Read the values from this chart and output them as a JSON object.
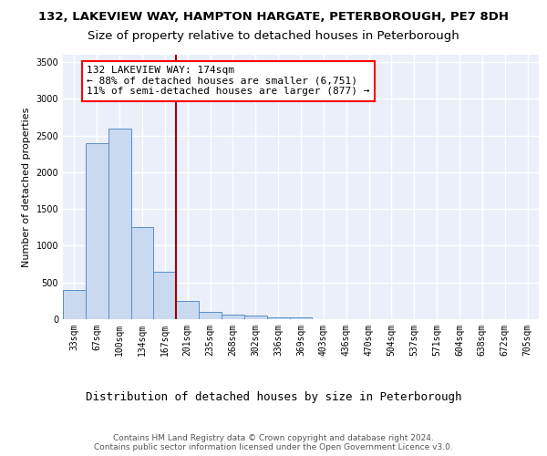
{
  "title1": "132, LAKEVIEW WAY, HAMPTON HARGATE, PETERBOROUGH, PE7 8DH",
  "title2": "Size of property relative to detached houses in Peterborough",
  "xlabel": "Distribution of detached houses by size in Peterborough",
  "ylabel": "Number of detached properties",
  "categories": [
    "33sqm",
    "67sqm",
    "100sqm",
    "134sqm",
    "167sqm",
    "201sqm",
    "235sqm",
    "268sqm",
    "302sqm",
    "336sqm",
    "369sqm",
    "403sqm",
    "436sqm",
    "470sqm",
    "504sqm",
    "537sqm",
    "571sqm",
    "604sqm",
    "638sqm",
    "672sqm",
    "705sqm"
  ],
  "values": [
    400,
    2400,
    2600,
    1250,
    650,
    250,
    100,
    60,
    55,
    30,
    30,
    5,
    5,
    5,
    5,
    5,
    5,
    5,
    0,
    0,
    0
  ],
  "bar_color": "#c9d9f0",
  "bar_edge_color": "#5a8fc4",
  "bg_color": "#eaeff9",
  "grid_color": "#ffffff",
  "vline_x": 4.5,
  "vline_color": "#a00000",
  "annotation_text": "132 LAKEVIEW WAY: 174sqm\n← 88% of detached houses are smaller (6,751)\n11% of semi-detached houses are larger (877) →",
  "ylim": [
    0,
    3600
  ],
  "footnote": "Contains HM Land Registry data © Crown copyright and database right 2024.\nContains public sector information licensed under the Open Government Licence v3.0.",
  "title1_fontsize": 9.5,
  "title2_fontsize": 9.5,
  "xlabel_fontsize": 9,
  "ylabel_fontsize": 8,
  "tick_fontsize": 7,
  "annotation_fontsize": 8,
  "footnote_fontsize": 6.5
}
